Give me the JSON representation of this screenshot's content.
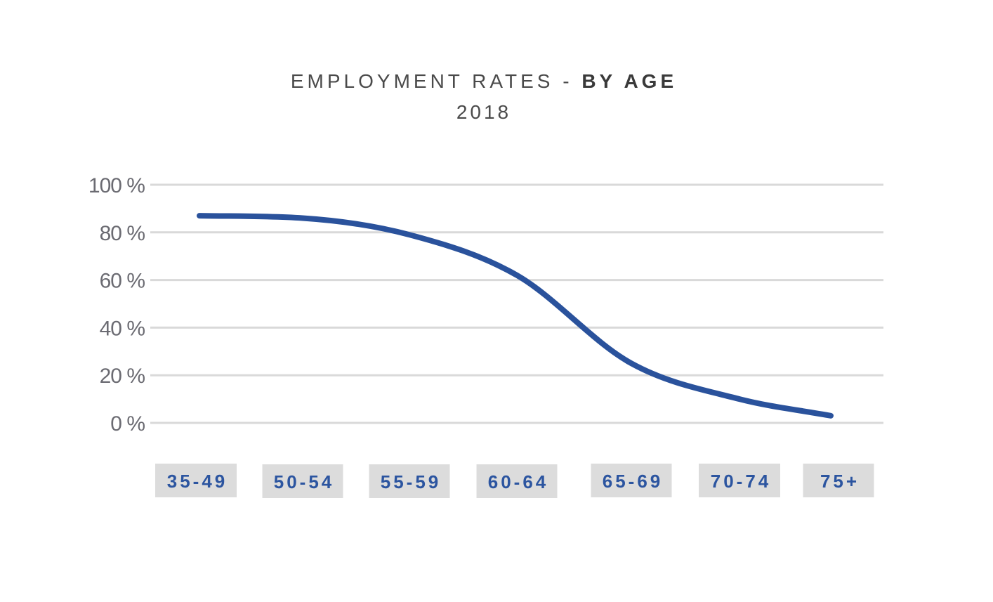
{
  "chart_data": {
    "type": "line",
    "title_prefix": "EMPLOYMENT RATES - ",
    "title_emphasis": "BY AGE",
    "subtitle": "2018",
    "categories": [
      "35-49",
      "50-54",
      "55-59",
      "60-64",
      "65-69",
      "70-74",
      "75+"
    ],
    "series": [
      {
        "name": "Employment rate",
        "values": [
          87,
          86,
          79,
          62,
          25,
          10,
          3
        ],
        "color": "#2a529c"
      }
    ],
    "ylim": [
      0,
      100
    ],
    "yticks": [
      0,
      20,
      40,
      60,
      80,
      100
    ],
    "ytick_labels": [
      "0 %",
      "20 %",
      "40 %",
      "60 %",
      "80 %",
      "100 %"
    ],
    "xlabel": "",
    "ylabel": "",
    "grid": true,
    "grid_color": "#d9d9d9",
    "category_box_color": "#dcdcdc",
    "category_text_color": "#2c55a0"
  }
}
